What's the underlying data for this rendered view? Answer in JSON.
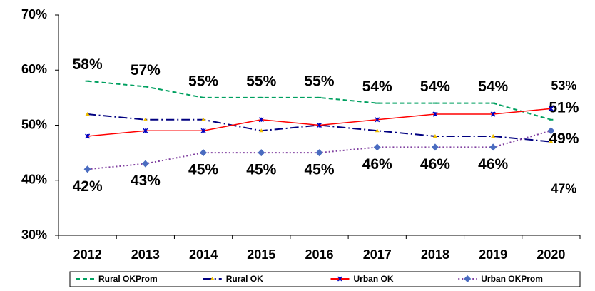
{
  "chart_data": {
    "type": "line",
    "categories": [
      "2012",
      "2013",
      "2014",
      "2015",
      "2016",
      "2017",
      "2018",
      "2019",
      "2020"
    ],
    "ylim": [
      30,
      70
    ],
    "yticks": [
      {
        "value": 30,
        "label": "30%"
      },
      {
        "value": 40,
        "label": "40%"
      },
      {
        "value": 50,
        "label": "50%"
      },
      {
        "value": 60,
        "label": "60%"
      },
      {
        "value": 70,
        "label": "70%"
      }
    ],
    "legend": "bottom",
    "series": [
      {
        "name": "Rural OKProm",
        "color": "#00a060",
        "dash": "6,4",
        "marker": "dash",
        "marker_color": "#00a060",
        "values": [
          58,
          57,
          55,
          55,
          55,
          54,
          54,
          54,
          51
        ],
        "value_labels": [
          "58%",
          "57%",
          "55%",
          "55%",
          "55%",
          "54%",
          "54%",
          "54%",
          "51%"
        ]
      },
      {
        "name": "Rural OK",
        "color": "#000080",
        "dash": "12,4,2,4",
        "marker": "triangle",
        "marker_color": "#f0c000",
        "values": [
          52,
          51,
          51,
          49,
          50,
          49,
          48,
          48,
          47
        ],
        "value_labels": [
          null,
          null,
          null,
          null,
          null,
          null,
          null,
          null,
          "47%"
        ]
      },
      {
        "name": "Urban OK",
        "color": "#ff0000",
        "dash": "",
        "marker": "star",
        "marker_color": "#0000c0",
        "values": [
          48,
          49,
          49,
          51,
          50,
          51,
          52,
          52,
          53
        ],
        "value_labels": [
          null,
          null,
          null,
          null,
          null,
          null,
          null,
          null,
          "53%"
        ]
      },
      {
        "name": "Urban OKProm",
        "color": "#8040a0",
        "dash": "2,3",
        "marker": "diamond",
        "marker_color": "#4a6cc0",
        "values": [
          42,
          43,
          45,
          45,
          45,
          46,
          46,
          46,
          49
        ],
        "value_labels": [
          "42%",
          "43%",
          "45%",
          "45%",
          "45%",
          "46%",
          "46%",
          "46%",
          "49%"
        ]
      }
    ]
  }
}
